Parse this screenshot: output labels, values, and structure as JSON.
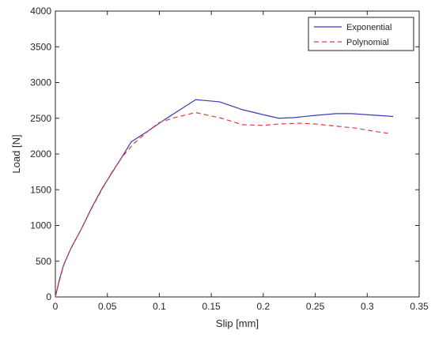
{
  "chart_data": {
    "type": "line",
    "xlabel": "Slip [mm]",
    "ylabel": "Load [N]",
    "xlim": [
      0,
      0.35
    ],
    "ylim": [
      0,
      4000
    ],
    "xticks": [
      0,
      0.05,
      0.1,
      0.15,
      0.2,
      0.25,
      0.3,
      0.35
    ],
    "xtick_labels": [
      "0",
      "0.05",
      "0.1",
      "0.15",
      "0.2",
      "0.25",
      "0.3",
      "0.35"
    ],
    "yticks": [
      0,
      500,
      1000,
      1500,
      2000,
      2500,
      3000,
      3500,
      4000
    ],
    "ytick_labels": [
      "0",
      "500",
      "1000",
      "1500",
      "2000",
      "2500",
      "3000",
      "3500",
      "4000"
    ],
    "grid": false,
    "legend_position": "top-right",
    "series": [
      {
        "name": "Exponential",
        "color": "#3b3bb8",
        "dash": "solid",
        "x": [
          0,
          0.004,
          0.008,
          0.015,
          0.025,
          0.035,
          0.045,
          0.055,
          0.065,
          0.073,
          0.09,
          0.105,
          0.12,
          0.135,
          0.158,
          0.18,
          0.2,
          0.215,
          0.23,
          0.25,
          0.27,
          0.285,
          0.3,
          0.325
        ],
        "y": [
          0,
          250,
          450,
          680,
          950,
          1250,
          1520,
          1750,
          1980,
          2170,
          2330,
          2480,
          2620,
          2760,
          2730,
          2620,
          2550,
          2500,
          2510,
          2540,
          2565,
          2565,
          2550,
          2525
        ]
      },
      {
        "name": "Polynomial",
        "color": "#e8393f",
        "dash": "dashed",
        "x": [
          0,
          0.004,
          0.008,
          0.015,
          0.025,
          0.035,
          0.045,
          0.055,
          0.065,
          0.075,
          0.09,
          0.1,
          0.115,
          0.135,
          0.16,
          0.18,
          0.2,
          0.215,
          0.235,
          0.25,
          0.27,
          0.29,
          0.31,
          0.32
        ],
        "y": [
          0,
          230,
          440,
          680,
          950,
          1240,
          1510,
          1760,
          1970,
          2140,
          2330,
          2440,
          2510,
          2580,
          2500,
          2410,
          2400,
          2420,
          2430,
          2420,
          2390,
          2360,
          2310,
          2290
        ]
      }
    ]
  }
}
